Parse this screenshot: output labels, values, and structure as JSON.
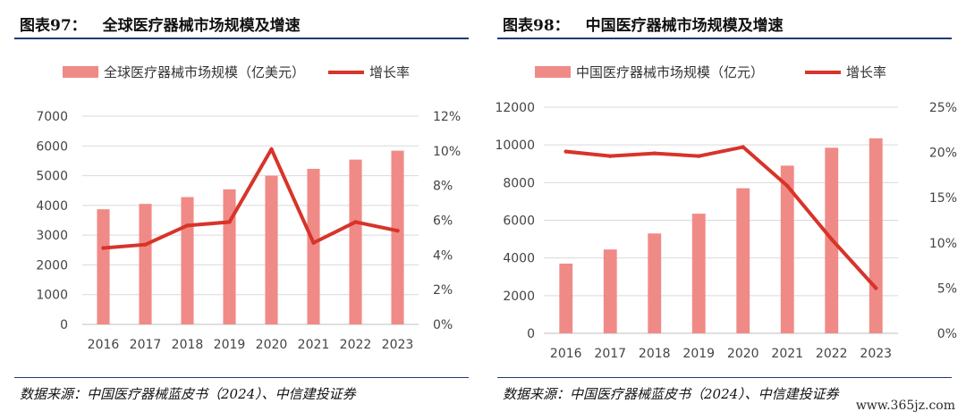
{
  "left": {
    "figure_no": "图表97：",
    "title": "全球医疗器械市场规模及增速",
    "legend_bar": "全球医疗器械市场规模（亿美元）",
    "legend_line": "增长率",
    "source": "数据来源：中国医疗器械蓝皮书（2024）、中信建投证券"
  },
  "right": {
    "figure_no": "图表98：",
    "title": "中国医疗器械市场规模及增速",
    "legend_bar": "中国医疗器械市场规模（亿元）",
    "legend_line": "增长率",
    "source": "数据来源：中国医疗器械蓝皮书（2024）、中信建投证券"
  },
  "watermark": "www.365jz.com",
  "colors": {
    "bar": "#f08a87",
    "line": "#d7342a",
    "grid": "#d9d9d9",
    "axis": "#bfbfbf"
  },
  "chart_data": [
    {
      "type": "bar",
      "title": "全球医疗器械市场规模及增速",
      "categories": [
        "2016",
        "2017",
        "2018",
        "2019",
        "2020",
        "2021",
        "2022",
        "2023"
      ],
      "series": [
        {
          "name": "全球医疗器械市场规模（亿美元）",
          "type": "bar",
          "axis": "left",
          "values": [
            3870,
            4050,
            4280,
            4540,
            5000,
            5230,
            5540,
            5840
          ]
        },
        {
          "name": "增长率",
          "type": "line",
          "axis": "right",
          "unit": "%",
          "values": [
            4.4,
            4.6,
            5.7,
            5.9,
            10.1,
            4.7,
            5.9,
            5.4
          ]
        }
      ],
      "ylim_left": [
        0,
        7000
      ],
      "yticks_left": [
        0,
        1000,
        2000,
        3000,
        4000,
        5000,
        6000,
        7000
      ],
      "ytick_labels_left": [
        "0",
        "1000",
        "2000",
        "3000",
        "4000",
        "5000",
        "6000",
        "7000"
      ],
      "ylim_right": [
        0,
        12
      ],
      "yticks_right": [
        0,
        2,
        4,
        6,
        8,
        10,
        12
      ],
      "ytick_labels_right": [
        "0%",
        "2%",
        "4%",
        "6%",
        "8%",
        "10%",
        "12%"
      ],
      "grid": true,
      "legend_position": "top"
    },
    {
      "type": "bar",
      "title": "中国医疗器械市场规模及增速",
      "categories": [
        "2016",
        "2017",
        "2018",
        "2019",
        "2020",
        "2021",
        "2022",
        "2023"
      ],
      "series": [
        {
          "name": "中国医疗器械市场规模（亿元）",
          "type": "bar",
          "axis": "left",
          "values": [
            3700,
            4450,
            5300,
            6350,
            7700,
            8900,
            9850,
            10350
          ]
        },
        {
          "name": "增长率",
          "type": "line",
          "axis": "right",
          "unit": "%",
          "values": [
            20.1,
            19.6,
            19.9,
            19.6,
            20.6,
            16.3,
            10.4,
            5.0
          ]
        }
      ],
      "ylim_left": [
        0,
        12000
      ],
      "yticks_left": [
        0,
        2000,
        4000,
        6000,
        8000,
        10000,
        12000
      ],
      "ytick_labels_left": [
        "0",
        "2000",
        "4000",
        "6000",
        "8000",
        "10000",
        "12000"
      ],
      "ylim_right": [
        0,
        25
      ],
      "yticks_right": [
        0,
        5,
        10,
        15,
        20,
        25
      ],
      "ytick_labels_right": [
        "0%",
        "5%",
        "10%",
        "15%",
        "20%",
        "25%"
      ],
      "grid": true,
      "legend_position": "top"
    }
  ]
}
